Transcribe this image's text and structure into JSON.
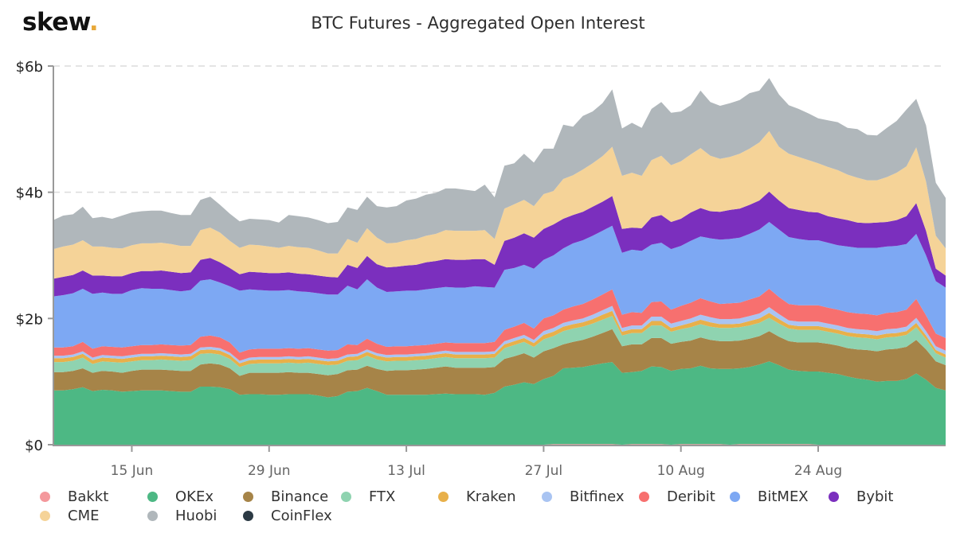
{
  "brand": {
    "logo_text": "skew",
    "logo_dot": ".",
    "dot_color": "#e8a838"
  },
  "chart_data": {
    "type": "area",
    "stacked": true,
    "title": "BTC Futures - Aggregated Open Interest",
    "xlabel": "",
    "ylabel": "",
    "ylim": [
      0,
      6
    ],
    "y_unit": "$b",
    "y_ticks": [
      {
        "value": 0,
        "label": "$0"
      },
      {
        "value": 2,
        "label": "$2b"
      },
      {
        "value": 4,
        "label": "$4b"
      },
      {
        "value": 6,
        "label": "$6b"
      }
    ],
    "x_start": "7 Jun",
    "x_end": "6 Sep",
    "x_count": 92,
    "x_ticks": [
      {
        "index": 8,
        "label": "15 Jun"
      },
      {
        "index": 22,
        "label": "29 Jun"
      },
      {
        "index": 36,
        "label": "13 Jul"
      },
      {
        "index": 50,
        "label": "27 Jul"
      },
      {
        "index": 64,
        "label": "10 Aug"
      },
      {
        "index": 78,
        "label": "24 Aug"
      }
    ],
    "grid": "horizontal-dashed",
    "legend_position": "bottom",
    "series": [
      {
        "name": "Bakkt",
        "color": "#f4989c",
        "values": [
          0.0,
          0.0,
          0.0,
          0.0,
          0.0,
          0.0,
          0.0,
          0.0,
          0.0,
          0.0,
          0.0,
          0.0,
          0.0,
          0.0,
          0.0,
          0.0,
          0.0,
          0.0,
          0.0,
          0.0,
          0.0,
          0.0,
          0.0,
          0.0,
          0.0,
          0.0,
          0.0,
          0.0,
          0.0,
          0.0,
          0.0,
          0.0,
          0.0,
          0.0,
          0.0,
          0.0,
          0.0,
          0.0,
          0.0,
          0.0,
          0.0,
          0.0,
          0.0,
          0.0,
          0.0,
          0.0,
          0.0,
          0.0,
          0.0,
          0.0,
          0.0,
          0.01,
          0.01,
          0.01,
          0.01,
          0.01,
          0.01,
          0.01,
          0.0,
          0.01,
          0.01,
          0.01,
          0.01,
          0.0,
          0.01,
          0.01,
          0.01,
          0.01,
          0.01,
          0.0,
          0.01,
          0.01,
          0.01,
          0.01,
          0.01,
          0.01,
          0.01,
          0.01,
          0.0,
          0.0,
          0.0,
          0.0,
          0.0,
          0.0,
          0.0,
          0.0,
          0.0,
          0.0,
          0.0,
          0.0,
          0.0,
          0.0
        ]
      },
      {
        "name": "OKEx",
        "color": "#4db884",
        "values": [
          0.86,
          0.86,
          0.88,
          0.91,
          0.85,
          0.87,
          0.86,
          0.84,
          0.85,
          0.86,
          0.86,
          0.86,
          0.85,
          0.84,
          0.84,
          0.92,
          0.92,
          0.91,
          0.88,
          0.79,
          0.8,
          0.8,
          0.79,
          0.79,
          0.8,
          0.8,
          0.8,
          0.78,
          0.75,
          0.77,
          0.84,
          0.85,
          0.9,
          0.85,
          0.79,
          0.79,
          0.79,
          0.79,
          0.79,
          0.8,
          0.81,
          0.8,
          0.8,
          0.8,
          0.79,
          0.82,
          0.92,
          0.95,
          0.99,
          0.96,
          1.04,
          1.08,
          1.2,
          1.21,
          1.22,
          1.25,
          1.28,
          1.3,
          1.14,
          1.14,
          1.16,
          1.23,
          1.22,
          1.17,
          1.19,
          1.2,
          1.24,
          1.2,
          1.19,
          1.2,
          1.2,
          1.22,
          1.26,
          1.31,
          1.25,
          1.18,
          1.16,
          1.15,
          1.16,
          1.14,
          1.12,
          1.08,
          1.05,
          1.03,
          1.0,
          1.01,
          1.01,
          1.04,
          1.13,
          1.03,
          0.9,
          0.86
        ]
      },
      {
        "name": "Binance",
        "color": "#a68448",
        "values": [
          0.29,
          0.29,
          0.29,
          0.3,
          0.29,
          0.3,
          0.3,
          0.3,
          0.32,
          0.33,
          0.33,
          0.33,
          0.33,
          0.33,
          0.33,
          0.35,
          0.37,
          0.36,
          0.33,
          0.3,
          0.34,
          0.34,
          0.35,
          0.35,
          0.35,
          0.34,
          0.34,
          0.34,
          0.35,
          0.35,
          0.34,
          0.34,
          0.35,
          0.35,
          0.38,
          0.39,
          0.39,
          0.4,
          0.41,
          0.42,
          0.43,
          0.42,
          0.42,
          0.42,
          0.43,
          0.41,
          0.44,
          0.45,
          0.46,
          0.42,
          0.44,
          0.44,
          0.38,
          0.41,
          0.43,
          0.45,
          0.48,
          0.52,
          0.42,
          0.44,
          0.42,
          0.45,
          0.46,
          0.43,
          0.43,
          0.44,
          0.45,
          0.45,
          0.44,
          0.44,
          0.44,
          0.45,
          0.45,
          0.48,
          0.45,
          0.45,
          0.45,
          0.46,
          0.46,
          0.46,
          0.45,
          0.45,
          0.46,
          0.47,
          0.48,
          0.5,
          0.51,
          0.51,
          0.53,
          0.48,
          0.42,
          0.4
        ]
      },
      {
        "name": "FTX",
        "color": "#8fd3b0",
        "values": [
          0.16,
          0.16,
          0.16,
          0.17,
          0.14,
          0.15,
          0.15,
          0.16,
          0.15,
          0.15,
          0.15,
          0.16,
          0.16,
          0.16,
          0.17,
          0.17,
          0.16,
          0.16,
          0.15,
          0.14,
          0.14,
          0.15,
          0.15,
          0.15,
          0.15,
          0.15,
          0.16,
          0.16,
          0.16,
          0.15,
          0.15,
          0.15,
          0.16,
          0.15,
          0.15,
          0.15,
          0.15,
          0.15,
          0.15,
          0.15,
          0.15,
          0.15,
          0.15,
          0.15,
          0.15,
          0.15,
          0.17,
          0.18,
          0.18,
          0.17,
          0.19,
          0.19,
          0.21,
          0.21,
          0.21,
          0.21,
          0.21,
          0.21,
          0.17,
          0.18,
          0.18,
          0.2,
          0.2,
          0.19,
          0.2,
          0.21,
          0.21,
          0.21,
          0.21,
          0.21,
          0.21,
          0.21,
          0.21,
          0.21,
          0.21,
          0.2,
          0.2,
          0.2,
          0.2,
          0.19,
          0.19,
          0.19,
          0.19,
          0.19,
          0.19,
          0.19,
          0.19,
          0.19,
          0.2,
          0.16,
          0.13,
          0.12
        ]
      },
      {
        "name": "Kraken",
        "color": "#e8b04a",
        "values": [
          0.06,
          0.06,
          0.06,
          0.06,
          0.06,
          0.06,
          0.06,
          0.06,
          0.06,
          0.06,
          0.06,
          0.06,
          0.06,
          0.06,
          0.06,
          0.06,
          0.06,
          0.06,
          0.06,
          0.06,
          0.06,
          0.06,
          0.06,
          0.06,
          0.06,
          0.06,
          0.06,
          0.06,
          0.06,
          0.06,
          0.06,
          0.06,
          0.06,
          0.06,
          0.06,
          0.06,
          0.06,
          0.06,
          0.06,
          0.06,
          0.06,
          0.06,
          0.06,
          0.06,
          0.06,
          0.06,
          0.06,
          0.06,
          0.06,
          0.06,
          0.07,
          0.07,
          0.07,
          0.07,
          0.07,
          0.07,
          0.08,
          0.08,
          0.06,
          0.06,
          0.06,
          0.07,
          0.07,
          0.06,
          0.06,
          0.07,
          0.07,
          0.07,
          0.06,
          0.06,
          0.06,
          0.07,
          0.07,
          0.08,
          0.07,
          0.06,
          0.06,
          0.06,
          0.06,
          0.06,
          0.06,
          0.06,
          0.06,
          0.06,
          0.06,
          0.06,
          0.06,
          0.06,
          0.07,
          0.06,
          0.05,
          0.05
        ]
      },
      {
        "name": "Bitfinex",
        "color": "#a9c4f2",
        "values": [
          0.04,
          0.04,
          0.04,
          0.04,
          0.04,
          0.04,
          0.04,
          0.04,
          0.04,
          0.04,
          0.04,
          0.04,
          0.04,
          0.04,
          0.04,
          0.04,
          0.04,
          0.04,
          0.04,
          0.04,
          0.04,
          0.04,
          0.04,
          0.04,
          0.04,
          0.04,
          0.04,
          0.04,
          0.04,
          0.04,
          0.04,
          0.04,
          0.04,
          0.04,
          0.04,
          0.04,
          0.04,
          0.04,
          0.04,
          0.04,
          0.04,
          0.04,
          0.04,
          0.04,
          0.04,
          0.04,
          0.05,
          0.05,
          0.05,
          0.05,
          0.06,
          0.06,
          0.06,
          0.06,
          0.06,
          0.07,
          0.07,
          0.08,
          0.06,
          0.06,
          0.06,
          0.07,
          0.07,
          0.07,
          0.07,
          0.07,
          0.08,
          0.08,
          0.08,
          0.08,
          0.08,
          0.08,
          0.08,
          0.09,
          0.08,
          0.07,
          0.07,
          0.07,
          0.07,
          0.07,
          0.07,
          0.07,
          0.07,
          0.07,
          0.07,
          0.07,
          0.07,
          0.07,
          0.08,
          0.07,
          0.06,
          0.06
        ]
      },
      {
        "name": "Deribit",
        "color": "#f7706f",
        "values": [
          0.13,
          0.13,
          0.13,
          0.15,
          0.14,
          0.14,
          0.14,
          0.14,
          0.14,
          0.14,
          0.14,
          0.14,
          0.14,
          0.14,
          0.14,
          0.17,
          0.18,
          0.17,
          0.16,
          0.13,
          0.13,
          0.13,
          0.13,
          0.13,
          0.13,
          0.13,
          0.13,
          0.13,
          0.13,
          0.13,
          0.16,
          0.14,
          0.17,
          0.15,
          0.13,
          0.13,
          0.13,
          0.13,
          0.13,
          0.13,
          0.13,
          0.14,
          0.14,
          0.14,
          0.14,
          0.15,
          0.18,
          0.18,
          0.19,
          0.18,
          0.2,
          0.2,
          0.21,
          0.22,
          0.23,
          0.24,
          0.25,
          0.26,
          0.21,
          0.21,
          0.2,
          0.23,
          0.24,
          0.22,
          0.24,
          0.25,
          0.26,
          0.25,
          0.24,
          0.25,
          0.25,
          0.26,
          0.27,
          0.29,
          0.27,
          0.26,
          0.26,
          0.26,
          0.26,
          0.25,
          0.25,
          0.25,
          0.25,
          0.25,
          0.25,
          0.26,
          0.26,
          0.27,
          0.3,
          0.25,
          0.2,
          0.2
        ]
      },
      {
        "name": "BitMEX",
        "color": "#7da8f3",
        "values": [
          0.81,
          0.83,
          0.84,
          0.84,
          0.87,
          0.85,
          0.84,
          0.85,
          0.89,
          0.9,
          0.89,
          0.88,
          0.87,
          0.86,
          0.87,
          0.89,
          0.89,
          0.87,
          0.89,
          0.98,
          0.95,
          0.93,
          0.92,
          0.92,
          0.92,
          0.91,
          0.89,
          0.89,
          0.89,
          0.88,
          0.93,
          0.88,
          0.94,
          0.89,
          0.87,
          0.87,
          0.88,
          0.87,
          0.88,
          0.88,
          0.88,
          0.88,
          0.88,
          0.9,
          0.89,
          0.86,
          0.95,
          0.93,
          0.92,
          0.95,
          0.93,
          0.95,
          0.97,
          1.0,
          1.01,
          1.01,
          1.01,
          1.01,
          0.98,
          0.99,
          0.98,
          0.91,
          0.93,
          0.96,
          0.95,
          0.98,
          0.98,
          1.0,
          1.02,
          1.02,
          1.03,
          1.04,
          1.06,
          1.06,
          1.07,
          1.06,
          1.05,
          1.03,
          1.03,
          1.03,
          1.02,
          1.04,
          1.04,
          1.05,
          1.07,
          1.05,
          1.05,
          1.04,
          1.03,
          0.95,
          0.83,
          0.8
        ]
      },
      {
        "name": "Bybit",
        "color": "#7b2fbe",
        "values": [
          0.28,
          0.29,
          0.29,
          0.29,
          0.29,
          0.27,
          0.28,
          0.28,
          0.27,
          0.27,
          0.28,
          0.29,
          0.29,
          0.29,
          0.28,
          0.33,
          0.34,
          0.32,
          0.29,
          0.26,
          0.28,
          0.28,
          0.28,
          0.28,
          0.28,
          0.28,
          0.28,
          0.28,
          0.28,
          0.27,
          0.33,
          0.34,
          0.37,
          0.37,
          0.39,
          0.39,
          0.4,
          0.41,
          0.43,
          0.43,
          0.44,
          0.44,
          0.44,
          0.43,
          0.44,
          0.36,
          0.46,
          0.48,
          0.5,
          0.49,
          0.49,
          0.49,
          0.47,
          0.45,
          0.45,
          0.46,
          0.46,
          0.47,
          0.38,
          0.35,
          0.36,
          0.43,
          0.44,
          0.43,
          0.43,
          0.45,
          0.45,
          0.43,
          0.44,
          0.46,
          0.46,
          0.46,
          0.46,
          0.48,
          0.46,
          0.46,
          0.46,
          0.45,
          0.44,
          0.42,
          0.43,
          0.42,
          0.4,
          0.39,
          0.4,
          0.39,
          0.41,
          0.44,
          0.49,
          0.39,
          0.2,
          0.19
        ]
      },
      {
        "name": "CME",
        "color": "#f5d398",
        "values": [
          0.47,
          0.48,
          0.48,
          0.48,
          0.46,
          0.46,
          0.45,
          0.44,
          0.44,
          0.44,
          0.44,
          0.44,
          0.44,
          0.43,
          0.42,
          0.47,
          0.48,
          0.47,
          0.43,
          0.42,
          0.43,
          0.43,
          0.42,
          0.4,
          0.42,
          0.42,
          0.42,
          0.4,
          0.37,
          0.38,
          0.41,
          0.4,
          0.44,
          0.42,
          0.38,
          0.38,
          0.4,
          0.41,
          0.42,
          0.43,
          0.46,
          0.46,
          0.46,
          0.45,
          0.46,
          0.41,
          0.51,
          0.53,
          0.53,
          0.5,
          0.55,
          0.53,
          0.63,
          0.63,
          0.67,
          0.69,
          0.72,
          0.78,
          0.84,
          0.87,
          0.83,
          0.91,
          0.94,
          0.9,
          0.91,
          0.92,
          0.95,
          0.88,
          0.84,
          0.84,
          0.87,
          0.89,
          0.92,
          0.96,
          0.85,
          0.86,
          0.84,
          0.82,
          0.78,
          0.78,
          0.76,
          0.72,
          0.71,
          0.68,
          0.67,
          0.71,
          0.75,
          0.79,
          0.88,
          0.78,
          0.52,
          0.43
        ]
      },
      {
        "name": "Huobi",
        "color": "#b0b7bb",
        "values": [
          0.46,
          0.49,
          0.48,
          0.53,
          0.45,
          0.47,
          0.46,
          0.52,
          0.52,
          0.51,
          0.52,
          0.51,
          0.49,
          0.49,
          0.49,
          0.48,
          0.49,
          0.44,
          0.43,
          0.42,
          0.41,
          0.41,
          0.42,
          0.4,
          0.49,
          0.49,
          0.48,
          0.48,
          0.48,
          0.5,
          0.5,
          0.52,
          0.5,
          0.5,
          0.57,
          0.58,
          0.63,
          0.64,
          0.65,
          0.65,
          0.66,
          0.67,
          0.65,
          0.63,
          0.72,
          0.66,
          0.68,
          0.65,
          0.73,
          0.69,
          0.72,
          0.67,
          0.86,
          0.77,
          0.85,
          0.82,
          0.84,
          0.91,
          0.75,
          0.79,
          0.76,
          0.81,
          0.85,
          0.83,
          0.79,
          0.78,
          0.91,
          0.85,
          0.84,
          0.85,
          0.85,
          0.88,
          0.82,
          0.84,
          0.83,
          0.77,
          0.76,
          0.74,
          0.71,
          0.74,
          0.76,
          0.74,
          0.77,
          0.72,
          0.71,
          0.78,
          0.82,
          0.9,
          0.77,
          0.89,
          0.84,
          0.8
        ]
      },
      {
        "name": "CoinFlex",
        "color": "#2c3a44",
        "values": [
          0,
          0,
          0,
          0,
          0,
          0,
          0,
          0,
          0,
          0,
          0,
          0,
          0,
          0,
          0,
          0,
          0,
          0,
          0,
          0,
          0,
          0,
          0,
          0,
          0,
          0,
          0,
          0,
          0,
          0,
          0,
          0,
          0,
          0,
          0,
          0,
          0,
          0,
          0,
          0,
          0,
          0,
          0,
          0,
          0,
          0,
          0,
          0,
          0,
          0,
          0,
          0,
          0,
          0,
          0,
          0,
          0,
          0,
          0,
          0,
          0,
          0,
          0,
          0,
          0,
          0,
          0,
          0,
          0,
          0,
          0,
          0,
          0,
          0,
          0,
          0,
          0,
          0,
          0,
          0,
          0,
          0,
          0,
          0,
          0,
          0,
          0,
          0,
          0,
          0,
          0,
          0
        ]
      }
    ]
  }
}
